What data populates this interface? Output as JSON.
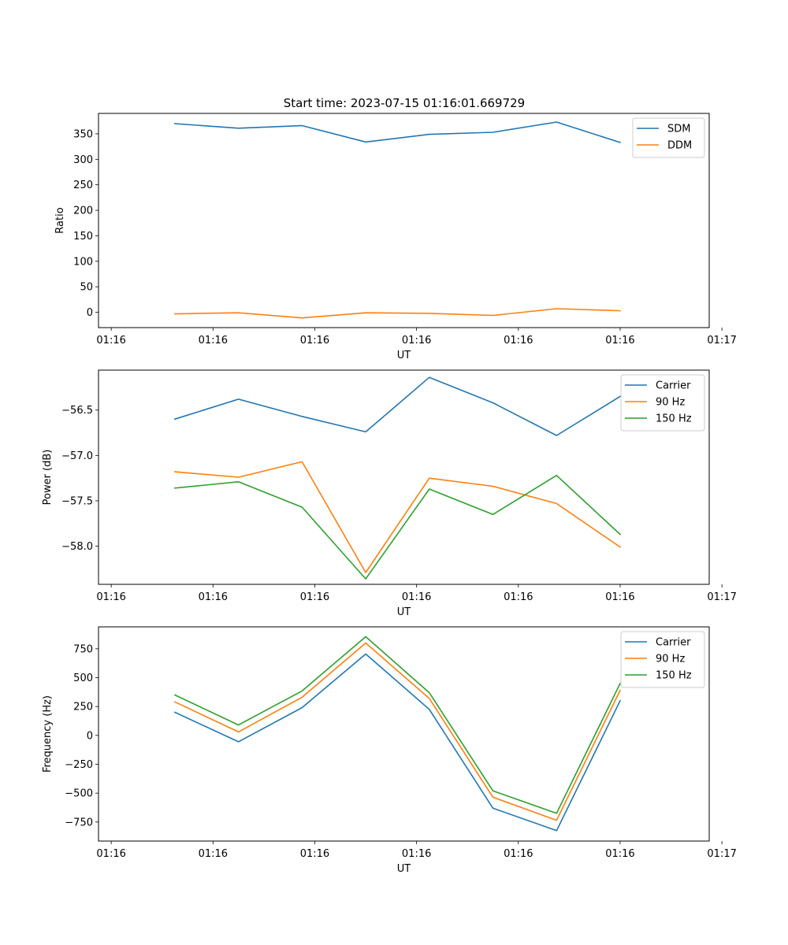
{
  "title": "Start time: 2023-07-15 01:16:01.669729",
  "chart_data": [
    {
      "type": "line",
      "xlabel": "UT",
      "ylabel": "Ratio",
      "x": [
        0.5,
        1.0,
        1.5,
        2.0,
        2.5,
        3.0,
        3.5,
        4.0
      ],
      "xlim": [
        -0.1,
        4.7
      ],
      "xticks": [
        0,
        0.8,
        1.6,
        2.4,
        3.2,
        4.0,
        4.8
      ],
      "xtick_labels": [
        "01:16",
        "01:16",
        "01:16",
        "01:16",
        "01:16",
        "01:16",
        "01:17"
      ],
      "ylim": [
        -30,
        390
      ],
      "yticks": [
        0,
        50,
        100,
        150,
        200,
        250,
        300,
        350
      ],
      "ytick_labels": [
        "0",
        "50",
        "100",
        "150",
        "200",
        "250",
        "300",
        "350"
      ],
      "legend": "top-right",
      "series": [
        {
          "name": "SDM",
          "color": "#1f77b4",
          "values": [
            370,
            361,
            366,
            334,
            349,
            353,
            373,
            333
          ]
        },
        {
          "name": "DDM",
          "color": "#ff7f0e",
          "values": [
            -3,
            -1,
            -11,
            -1,
            -2,
            -6,
            7,
            3
          ]
        }
      ]
    },
    {
      "type": "line",
      "xlabel": "UT",
      "ylabel": "Power (dB)",
      "x": [
        0.5,
        1.0,
        1.5,
        2.0,
        2.5,
        3.0,
        3.5,
        4.0
      ],
      "xlim": [
        -0.1,
        4.7
      ],
      "xticks": [
        0,
        0.8,
        1.6,
        2.4,
        3.2,
        4.0,
        4.8
      ],
      "xtick_labels": [
        "01:16",
        "01:16",
        "01:16",
        "01:16",
        "01:16",
        "01:16",
        "01:17"
      ],
      "ylim": [
        -58.42,
        -56.06
      ],
      "yticks": [
        -58.0,
        -57.5,
        -57.0,
        -56.5
      ],
      "ytick_labels": [
        "−58.0",
        "−57.5",
        "−57.0",
        "−56.5"
      ],
      "legend": "top-right",
      "series": [
        {
          "name": "Carrier",
          "color": "#1f77b4",
          "values": [
            -56.6,
            -56.38,
            -56.57,
            -56.74,
            -56.14,
            -56.42,
            -56.78,
            -56.35
          ]
        },
        {
          "name": "90 Hz",
          "color": "#ff7f0e",
          "values": [
            -57.18,
            -57.24,
            -57.07,
            -58.29,
            -57.25,
            -57.34,
            -57.53,
            -58.01
          ]
        },
        {
          "name": "150 Hz",
          "color": "#2ca02c",
          "values": [
            -57.36,
            -57.29,
            -57.57,
            -58.36,
            -57.37,
            -57.65,
            -57.22,
            -57.87
          ]
        }
      ]
    },
    {
      "type": "line",
      "xlabel": "UT",
      "ylabel": "Frequency (Hz)",
      "x": [
        0.5,
        1.0,
        1.5,
        2.0,
        2.5,
        3.0,
        3.5,
        4.0
      ],
      "xlim": [
        -0.1,
        4.7
      ],
      "xticks": [
        0,
        0.8,
        1.6,
        2.4,
        3.2,
        4.0,
        4.8
      ],
      "xtick_labels": [
        "01:16",
        "01:16",
        "01:16",
        "01:16",
        "01:16",
        "01:16",
        "01:17"
      ],
      "ylim": [
        -915,
        940
      ],
      "yticks": [
        -750,
        -500,
        -250,
        0,
        250,
        500,
        750
      ],
      "ytick_labels": [
        "−750",
        "−500",
        "−250",
        "0",
        "250",
        "500",
        "750"
      ],
      "legend": "top-right",
      "series": [
        {
          "name": "Carrier",
          "color": "#1f77b4",
          "values": [
            200,
            -55,
            240,
            705,
            225,
            -630,
            -825,
            300
          ]
        },
        {
          "name": "90 Hz",
          "color": "#ff7f0e",
          "values": [
            290,
            30,
            330,
            800,
            320,
            -535,
            -735,
            390
          ]
        },
        {
          "name": "150 Hz",
          "color": "#2ca02c",
          "values": [
            350,
            90,
            385,
            855,
            370,
            -480,
            -675,
            450
          ]
        }
      ]
    }
  ]
}
